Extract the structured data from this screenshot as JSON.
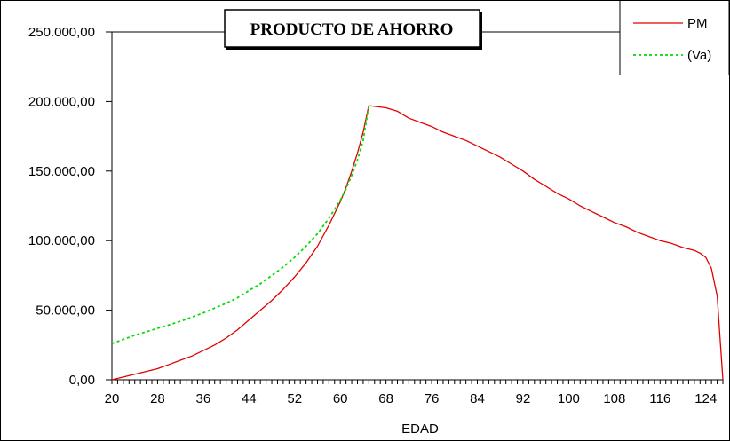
{
  "chart_data": {
    "type": "line",
    "title": "PRODUCTO DE AHORRO",
    "xlabel": "EDAD",
    "ylabel": "",
    "xlim": [
      20,
      127
    ],
    "ylim": [
      0,
      250000
    ],
    "x_tick_labels": [
      "20",
      "28",
      "36",
      "44",
      "52",
      "60",
      "68",
      "76",
      "84",
      "92",
      "100",
      "108",
      "116",
      "124"
    ],
    "x_tick_values": [
      20,
      28,
      36,
      44,
      52,
      60,
      68,
      76,
      84,
      92,
      100,
      108,
      116,
      124
    ],
    "y_tick_labels": [
      "0,00",
      "50.000,00",
      "100.000,00",
      "150.000,00",
      "200.000,00",
      "250.000,00"
    ],
    "y_tick_values": [
      0,
      50000,
      100000,
      150000,
      200000,
      250000
    ],
    "grid": false,
    "legend_position": "top-right",
    "series": [
      {
        "name": "PM",
        "color": "#e00000",
        "style": "solid",
        "x": [
          20,
          22,
          24,
          26,
          28,
          30,
          32,
          34,
          36,
          38,
          40,
          42,
          44,
          46,
          48,
          50,
          52,
          54,
          56,
          58,
          60,
          61,
          62,
          63,
          64,
          65,
          66,
          68,
          70,
          72,
          74,
          76,
          78,
          80,
          82,
          84,
          86,
          88,
          90,
          92,
          94,
          96,
          98,
          100,
          102,
          104,
          106,
          108,
          110,
          112,
          114,
          116,
          118,
          120,
          122,
          123,
          124,
          125,
          126,
          127
        ],
        "y": [
          0,
          2000,
          4000,
          6000,
          8000,
          11000,
          14000,
          17000,
          21000,
          25000,
          30000,
          36000,
          43000,
          50000,
          57000,
          65000,
          74000,
          84000,
          96000,
          111000,
          128000,
          138000,
          150000,
          163000,
          178000,
          197000,
          196500,
          195500,
          193000,
          188000,
          185000,
          182000,
          178000,
          175000,
          172000,
          168000,
          164000,
          160000,
          155000,
          150000,
          144000,
          139000,
          134000,
          130000,
          125000,
          121000,
          117000,
          113000,
          110000,
          106000,
          103000,
          100000,
          98000,
          95000,
          93000,
          91000,
          88000,
          80000,
          60000,
          0
        ]
      },
      {
        "name": "(Va)",
        "color": "#00dd00",
        "style": "dotted",
        "x": [
          20,
          22,
          24,
          26,
          28,
          30,
          32,
          34,
          36,
          38,
          40,
          42,
          44,
          46,
          48,
          50,
          52,
          54,
          56,
          58,
          60,
          61,
          62,
          63,
          64,
          65
        ],
        "y": [
          26000,
          29000,
          32000,
          34500,
          37000,
          39500,
          42000,
          45000,
          48000,
          51500,
          55000,
          59000,
          64000,
          69000,
          75000,
          81000,
          88000,
          96000,
          105000,
          116000,
          129000,
          137000,
          147000,
          158000,
          172000,
          197000
        ]
      }
    ]
  }
}
